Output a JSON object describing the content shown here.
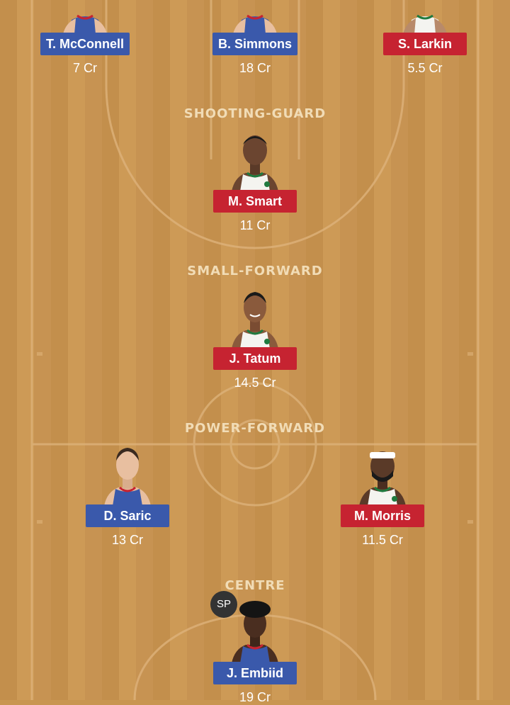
{
  "positions": {
    "shooting_guard": "SHOOTING-GUARD",
    "small_forward": "SMALL-FORWARD",
    "power_forward": "POWER-FORWARD",
    "centre": "CENTRE"
  },
  "players": {
    "mcconnell": {
      "name": "T. McConnell",
      "credits": "7 Cr",
      "team": "blue"
    },
    "simmons": {
      "name": "B. Simmons",
      "credits": "18 Cr",
      "team": "blue"
    },
    "larkin": {
      "name": "S. Larkin",
      "credits": "5.5 Cr",
      "team": "red"
    },
    "smart": {
      "name": "M. Smart",
      "credits": "11 Cr",
      "team": "red"
    },
    "tatum": {
      "name": "J. Tatum",
      "credits": "14.5 Cr",
      "team": "red"
    },
    "saric": {
      "name": "D. Saric",
      "credits": "13 Cr",
      "team": "blue"
    },
    "morris": {
      "name": "M. Morris",
      "credits": "11.5 Cr",
      "team": "red"
    },
    "embiid": {
      "name": "J. Embiid",
      "credits": "19 Cr",
      "team": "blue",
      "badge": "SP"
    }
  },
  "colors": {
    "blue_team": "#3a59ab",
    "red_team": "#c62331",
    "court": "#c99651"
  }
}
